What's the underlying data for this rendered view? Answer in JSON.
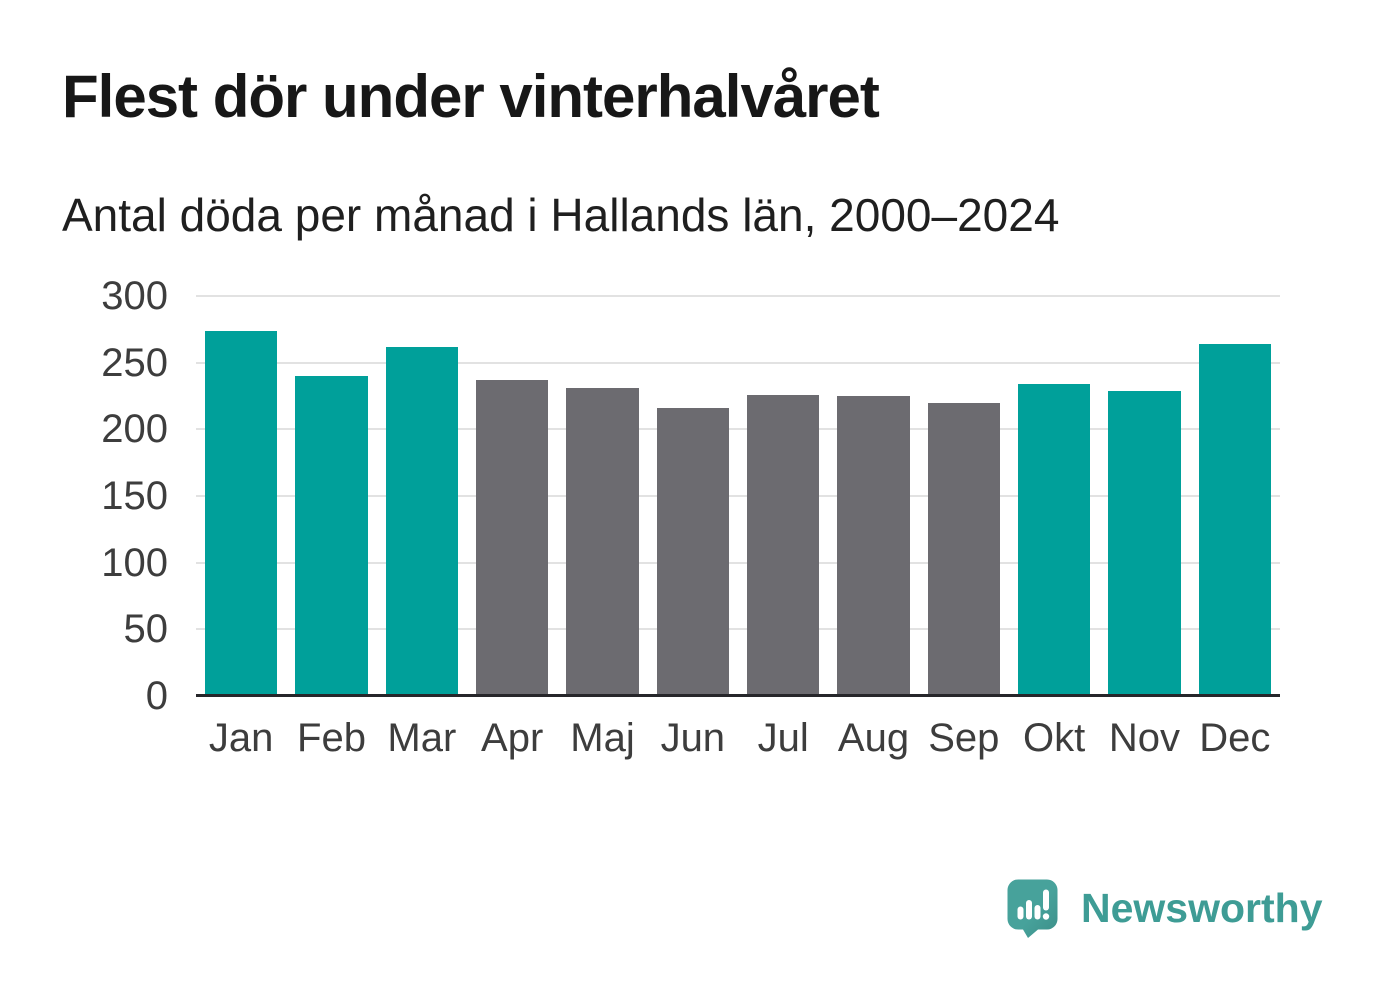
{
  "header": {
    "title": "Flest dör under vinterhalvåret",
    "subtitle": "Antal döda per månad i Hallands län, 2000–2024"
  },
  "chart_data": {
    "type": "bar",
    "title": "Flest dör under vinterhalvåret",
    "subtitle": "Antal döda per månad i Hallands län, 2000–2024",
    "categories": [
      "Jan",
      "Feb",
      "Mar",
      "Apr",
      "Maj",
      "Jun",
      "Jul",
      "Aug",
      "Sep",
      "Okt",
      "Nov",
      "Dec"
    ],
    "values": [
      274,
      240,
      262,
      237,
      231,
      216,
      226,
      225,
      220,
      234,
      229,
      264
    ],
    "bar_color_keys": [
      "teal",
      "teal",
      "teal",
      "gray",
      "gray",
      "gray",
      "gray",
      "gray",
      "gray",
      "teal",
      "teal",
      "teal"
    ],
    "xlabel": "",
    "ylabel": "",
    "ylim": [
      0,
      300
    ],
    "yticks": [
      0,
      50,
      100,
      150,
      200,
      250,
      300
    ],
    "grid": "horizontal-on",
    "legend": "none"
  },
  "colors": {
    "teal": "#00a09a",
    "gray": "#6c6b70",
    "brand_teal": "#3e9c95",
    "brand_teal_dark": "#3c8e88",
    "gridline": "#e2e2e2",
    "axis_line": "#26262a",
    "title_text": "#171717",
    "label_text": "#3d3d3d"
  },
  "footer": {
    "brand": "Newsworthy"
  }
}
